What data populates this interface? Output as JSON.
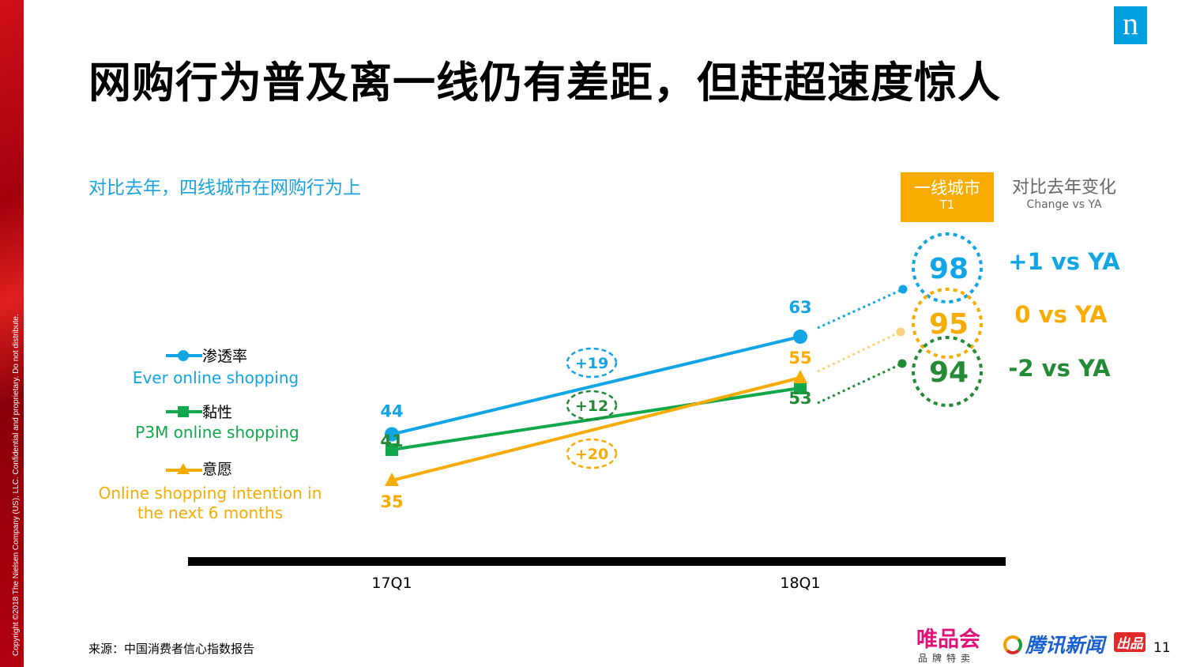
{
  "copyright": "Copyright ©2018 The Nielsen Company (US), LLC. Confidential and proprietary. Do not distribute.",
  "logo_letter": "n",
  "title": "网购行为普及离一线仍有差距，但赶超速度惊人",
  "subtitle": "对比去年，四线城市在网购行为上",
  "t1_header": {
    "cn": "一线城市",
    "en": "T1"
  },
  "change_header": {
    "cn": "对比去年变化",
    "en": "Change vs YA"
  },
  "source": "来源：中国消费者信心指数报告",
  "footer": {
    "vip_logo": "唯品会",
    "vip_sub": "品牌特卖",
    "tencent_logo": "腾讯新闻",
    "tencent_badge": "出品",
    "page_number": "11"
  },
  "chart_data": {
    "type": "line",
    "categories": [
      "17Q1",
      "18Q1"
    ],
    "series": [
      {
        "name": "渗透率",
        "name_en": "Ever online shopping",
        "marker": "circle",
        "color": "#12a5e6",
        "values": [
          44,
          63
        ],
        "growth": "+19",
        "t1_value": 98,
        "t1_change": "+1 vs YA"
      },
      {
        "name": "黏性",
        "name_en": "P3M online shopping",
        "marker": "square",
        "color": "#10a84a",
        "label_color": "#238a35",
        "values": [
          41,
          53
        ],
        "growth": "+12",
        "t1_value": 94,
        "t1_change": "-2 vs YA"
      },
      {
        "name": "意愿",
        "name_en": "Online shopping intention in the next 6 months",
        "marker": "triangle",
        "color": "#f8ab00",
        "values": [
          35,
          55
        ],
        "growth": "+20",
        "t1_value": 95,
        "t1_change": "0 vs YA"
      }
    ],
    "grid": false
  }
}
